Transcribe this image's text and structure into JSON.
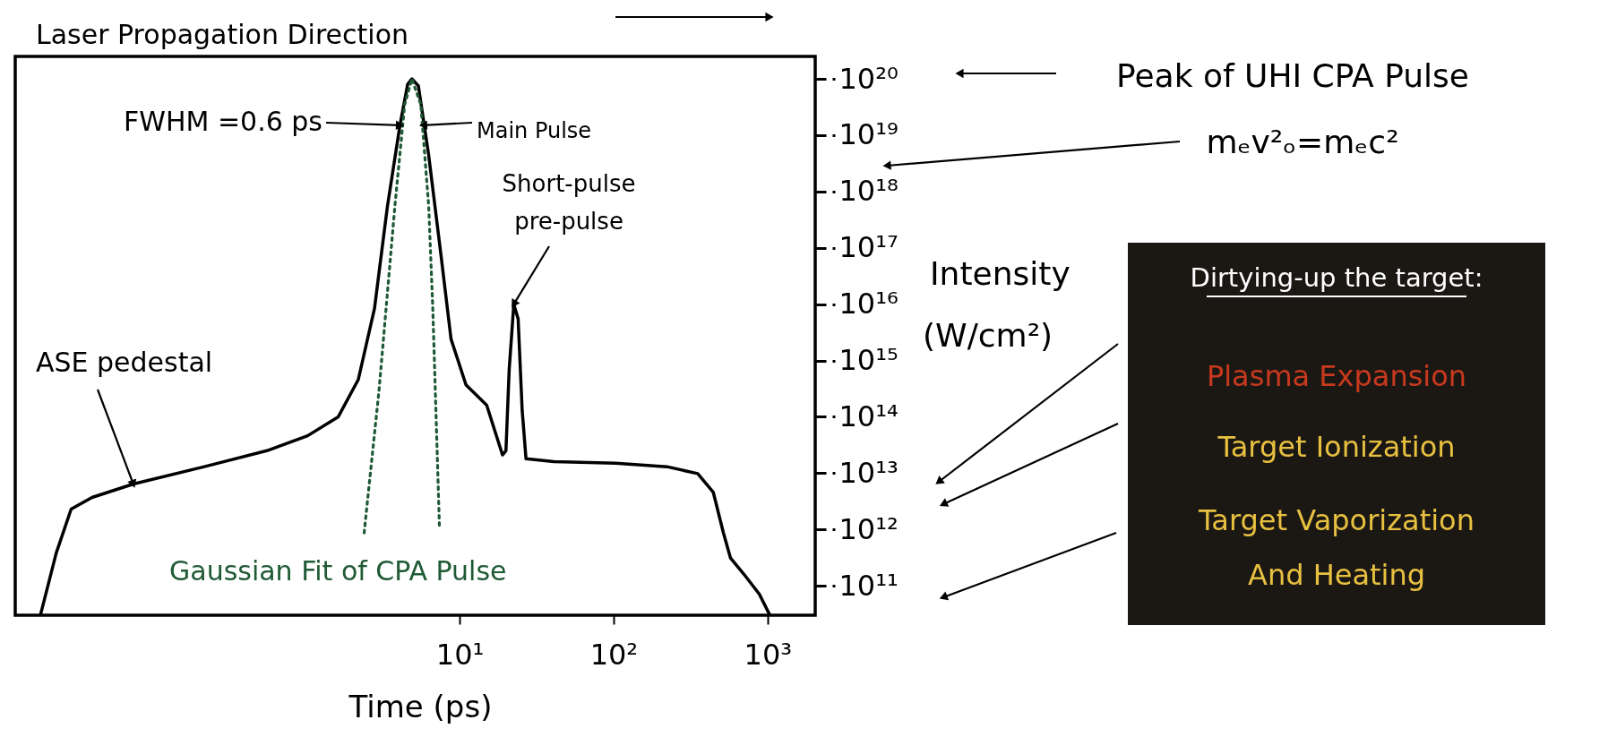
{
  "chart_data": {
    "type": "line",
    "xlabel": "Time (ps)",
    "ylabel": "Intensity (W/cm²)",
    "log": "xy",
    "xlim": [
      0.013,
      2040
    ],
    "ylim": [
      30000000000.0,
      2.5e+20
    ],
    "xticks": [
      {
        "value": 10,
        "label": "10¹"
      },
      {
        "value": 100,
        "label": "10²"
      },
      {
        "value": 1000,
        "label": "10³"
      }
    ],
    "yticks": [
      {
        "value": 100000000000.0,
        "label": "10¹¹"
      },
      {
        "value": 1000000000000.0,
        "label": "10¹²"
      },
      {
        "value": 10000000000000.0,
        "label": "10¹³"
      },
      {
        "value": 100000000000000.0,
        "label": "10¹⁴"
      },
      {
        "value": 1000000000000000.0,
        "label": "10¹⁵"
      },
      {
        "value": 1e+16,
        "label": "10¹⁶"
      },
      {
        "value": 1e+17,
        "label": "10¹⁷"
      },
      {
        "value": 1e+18,
        "label": "10¹⁸"
      },
      {
        "value": 1e+19,
        "label": "10¹⁹"
      },
      {
        "value": 1e+20,
        "label": "10²⁰"
      }
    ],
    "series": [
      {
        "color": "#000000",
        "line_style": "solid",
        "x": [
          0.019,
          0.024,
          0.03,
          0.041,
          0.076,
          0.22,
          0.56,
          1.03,
          1.63,
          2.2,
          2.8,
          3.4,
          4.1,
          4.6,
          4.9,
          5.4,
          6.3,
          7.6,
          8.8,
          11,
          15,
          19,
          20,
          21,
          22.5,
          24,
          25.5,
          27,
          41,
          103,
          222,
          352,
          444,
          517,
          575,
          703,
          885,
          1030
        ],
        "values": [
          31000000000.0,
          380000000000.0,
          2300000000000.0,
          3700000000000.0,
          6400000000000.0,
          13000000000000.0,
          25000000000000.0,
          46000000000000.0,
          100000000000000.0,
          460000000000000.0,
          8300000000000000.0,
          5.5e+17,
          1.5e+19,
          8e+19,
          1e+20,
          7.5e+19,
          4.4e+18,
          6.8e+16,
          2400000000000000.0,
          370000000000000.0,
          160000000000000.0,
          21000000000000.0,
          25000000000000.0,
          690000000000000.0,
          1e+16,
          5500000000000000.0,
          130000000000000.0,
          18000000000000.0,
          16000000000000.0,
          15000000000000.0,
          13000000000000.0,
          9800000000000.0,
          4600000000000.0,
          870000000000.0,
          310000000000.0,
          160000000000.0,
          71000000000.0,
          31000000000.0
        ]
      },
      {
        "name": "Gaussian Fit of CPA Pulse",
        "color": "#1f5a35",
        "line_style": "dotted",
        "x": [
          2.4,
          3.0,
          3.8,
          4.4,
          4.9,
          5.6,
          6.3,
          6.7,
          7.4
        ],
        "values": [
          870000000000.0,
          300000000000000.0,
          5.5e+17,
          3.5e+19,
          1e+20,
          3.5e+19,
          5.5e+17,
          8300000000000000.0,
          1100000000000.0
        ]
      }
    ],
    "annotations": [
      "Laser Propagation Direction",
      {
        "text": "FWHM =0.6 ps",
        "x": 4.1,
        "y": 1.5e+19
      },
      {
        "text": "Main Pulse",
        "x": 5.8,
        "y": 1.5e+19
      },
      {
        "text": "Short-pulse pre-pulse",
        "x": 22.5,
        "y": 1e+16
      },
      {
        "text": "ASE pedestal",
        "x": 0.076,
        "y": 6400000000000.0
      },
      "Peak of UHI CPA Pulse",
      "mₑv²ₒ=mₑc²",
      "Dirtying-up the target:",
      "Plasma Expansion",
      "Target Ionization",
      "Target Vaporization And Heating"
    ]
  }
}
